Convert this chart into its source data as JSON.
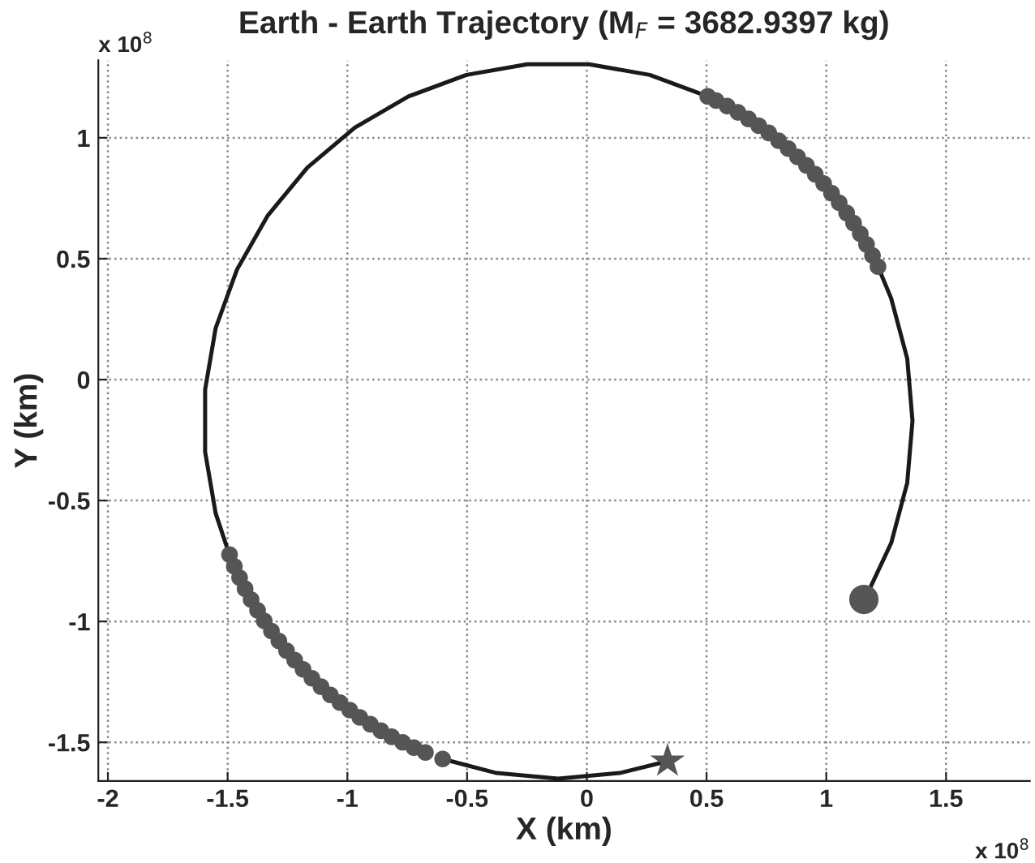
{
  "chart_data": {
    "type": "line",
    "title": "Earth - Earth Trajectory (M$_{F}$ = 3682.9397 kg)",
    "xlabel": "X (km)",
    "ylabel": "Y (km)",
    "annotations": [
      "x 10$^{8}$",
      "x 10$^{8}$"
    ],
    "xlim": [
      -2.04,
      1.85
    ],
    "ylim": [
      -1.66,
      1.32
    ],
    "xticks": [
      -2,
      -1.5,
      -1,
      -0.5,
      0,
      0.5,
      1,
      1.5
    ],
    "yticks": [
      -1.5,
      -1,
      -0.5,
      0,
      0.5,
      1
    ],
    "grid": true,
    "line_style": "solid",
    "series": [
      {
        "marker": "none",
        "color": "#1a1a1a",
        "x": [
          1.16,
          1.271,
          1.338,
          1.36,
          1.338,
          1.271,
          1.216
        ],
        "values": [
          -0.91,
          -0.676,
          -0.427,
          -0.17,
          0.087,
          0.336,
          0.467
        ]
      },
      {
        "type": "scatter",
        "marker": "circle",
        "color": "#555555",
        "x": [
          1.216,
          1.193,
          1.168,
          1.142,
          1.114,
          1.085,
          1.054,
          1.022,
          0.989,
          0.954,
          0.917,
          0.88,
          0.841,
          0.801,
          0.76,
          0.718,
          0.675,
          0.631,
          0.586,
          0.54,
          0.505
        ],
        "values": [
          0.467,
          0.513,
          0.559,
          0.603,
          0.647,
          0.689,
          0.731,
          0.771,
          0.811,
          0.849,
          0.886,
          0.921,
          0.955,
          0.988,
          1.02,
          1.05,
          1.078,
          1.105,
          1.131,
          1.154,
          1.171
        ]
      },
      {
        "marker": "none",
        "color": "#1a1a1a",
        "x": [
          0.505,
          0.263,
          0.009,
          -0.249,
          -0.503,
          -0.745,
          -0.969,
          -1.167,
          -1.332,
          -1.461,
          -1.55,
          -1.594,
          -1.594,
          -1.55,
          -1.495
        ],
        "values": [
          1.171,
          1.26,
          1.304,
          1.304,
          1.26,
          1.171,
          1.042,
          0.877,
          0.679,
          0.455,
          0.213,
          -0.041,
          -0.299,
          -0.553,
          -0.717
        ]
      },
      {
        "type": "scatter",
        "marker": "circle",
        "color": "#555555",
        "x": [
          -1.492,
          -1.472,
          -1.45,
          -1.427,
          -1.402,
          -1.375,
          -1.347,
          -1.317,
          -1.286,
          -1.254,
          -1.22,
          -1.185,
          -1.148,
          -1.11,
          -1.071,
          -1.031,
          -0.99,
          -0.948,
          -0.904,
          -0.86,
          -0.815,
          -0.769,
          -0.722,
          -0.674,
          -0.602
        ],
        "values": [
          -0.724,
          -0.772,
          -0.819,
          -0.865,
          -0.91,
          -0.954,
          -0.998,
          -1.04,
          -1.081,
          -1.121,
          -1.16,
          -1.198,
          -1.235,
          -1.27,
          -1.304,
          -1.336,
          -1.367,
          -1.397,
          -1.425,
          -1.452,
          -1.477,
          -1.5,
          -1.522,
          -1.542,
          -1.569
        ]
      },
      {
        "marker": "none",
        "color": "#1a1a1a",
        "x": [
          -0.602,
          -0.377,
          -0.12,
          0.137,
          0.337
        ],
        "values": [
          -1.569,
          -1.627,
          -1.65,
          -1.627,
          -1.578
        ]
      },
      {
        "type": "scatter",
        "marker": "circle",
        "color": "#555555",
        "x": [
          1.157
        ],
        "values": [
          -0.909
        ]
      },
      {
        "type": "scatter",
        "marker": "star",
        "color": "#555555",
        "x": [
          0.337
        ],
        "values": [
          -1.578
        ]
      }
    ]
  }
}
